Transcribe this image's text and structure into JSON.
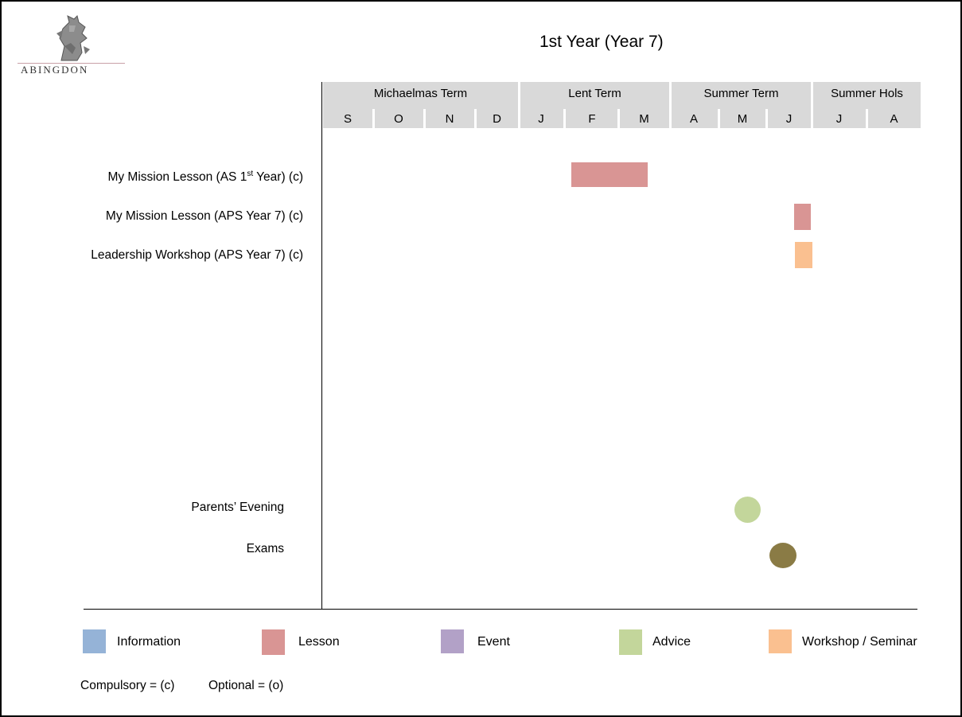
{
  "logo": {
    "wordmark": "ABINGDON",
    "emblem": "griffin-crest"
  },
  "title": "1st Year (Year 7)",
  "colors": {
    "information": "#95b3d7",
    "lesson": "#d99594",
    "event": "#b2a1c7",
    "advice": "#c3d69b",
    "workshop": "#fac090",
    "exams": "#8a7b45",
    "header_bg": "#d9d9d9"
  },
  "terms": [
    {
      "label": "Michaelmas Term"
    },
    {
      "label": "Lent Term"
    },
    {
      "label": "Summer Term"
    },
    {
      "label": "Summer Hols"
    }
  ],
  "months": [
    "S",
    "O",
    "N",
    "D",
    "J",
    "F",
    "M",
    "A",
    "M",
    "J",
    "J",
    "A"
  ],
  "rows": [
    {
      "label_main": "My Mission Lesson (AS 1",
      "label_sup": "st",
      "label_tail": " Year) (c)",
      "category": "lesson",
      "start_month": "F",
      "end_month": "M"
    },
    {
      "label": "My Mission Lesson (APS Year 7) (c)",
      "category": "lesson",
      "month": "J"
    },
    {
      "label": "Leadership Workshop (APS Year 7) (c)",
      "category": "workshop",
      "month": "J"
    }
  ],
  "milestones": [
    {
      "label": "Parents’ Evening",
      "category": "advice",
      "month": "M"
    },
    {
      "label": "Exams",
      "category": "exams",
      "month": "J"
    }
  ],
  "legend": [
    {
      "label": "Information",
      "category": "information"
    },
    {
      "label": "Lesson",
      "category": "lesson"
    },
    {
      "label": "Event",
      "category": "event"
    },
    {
      "label": "Advice",
      "category": "advice"
    },
    {
      "label": "Workshop / Seminar",
      "category": "workshop"
    }
  ],
  "footnote": {
    "compulsory": "Compulsory = (c)",
    "optional": "Optional = (o)"
  }
}
